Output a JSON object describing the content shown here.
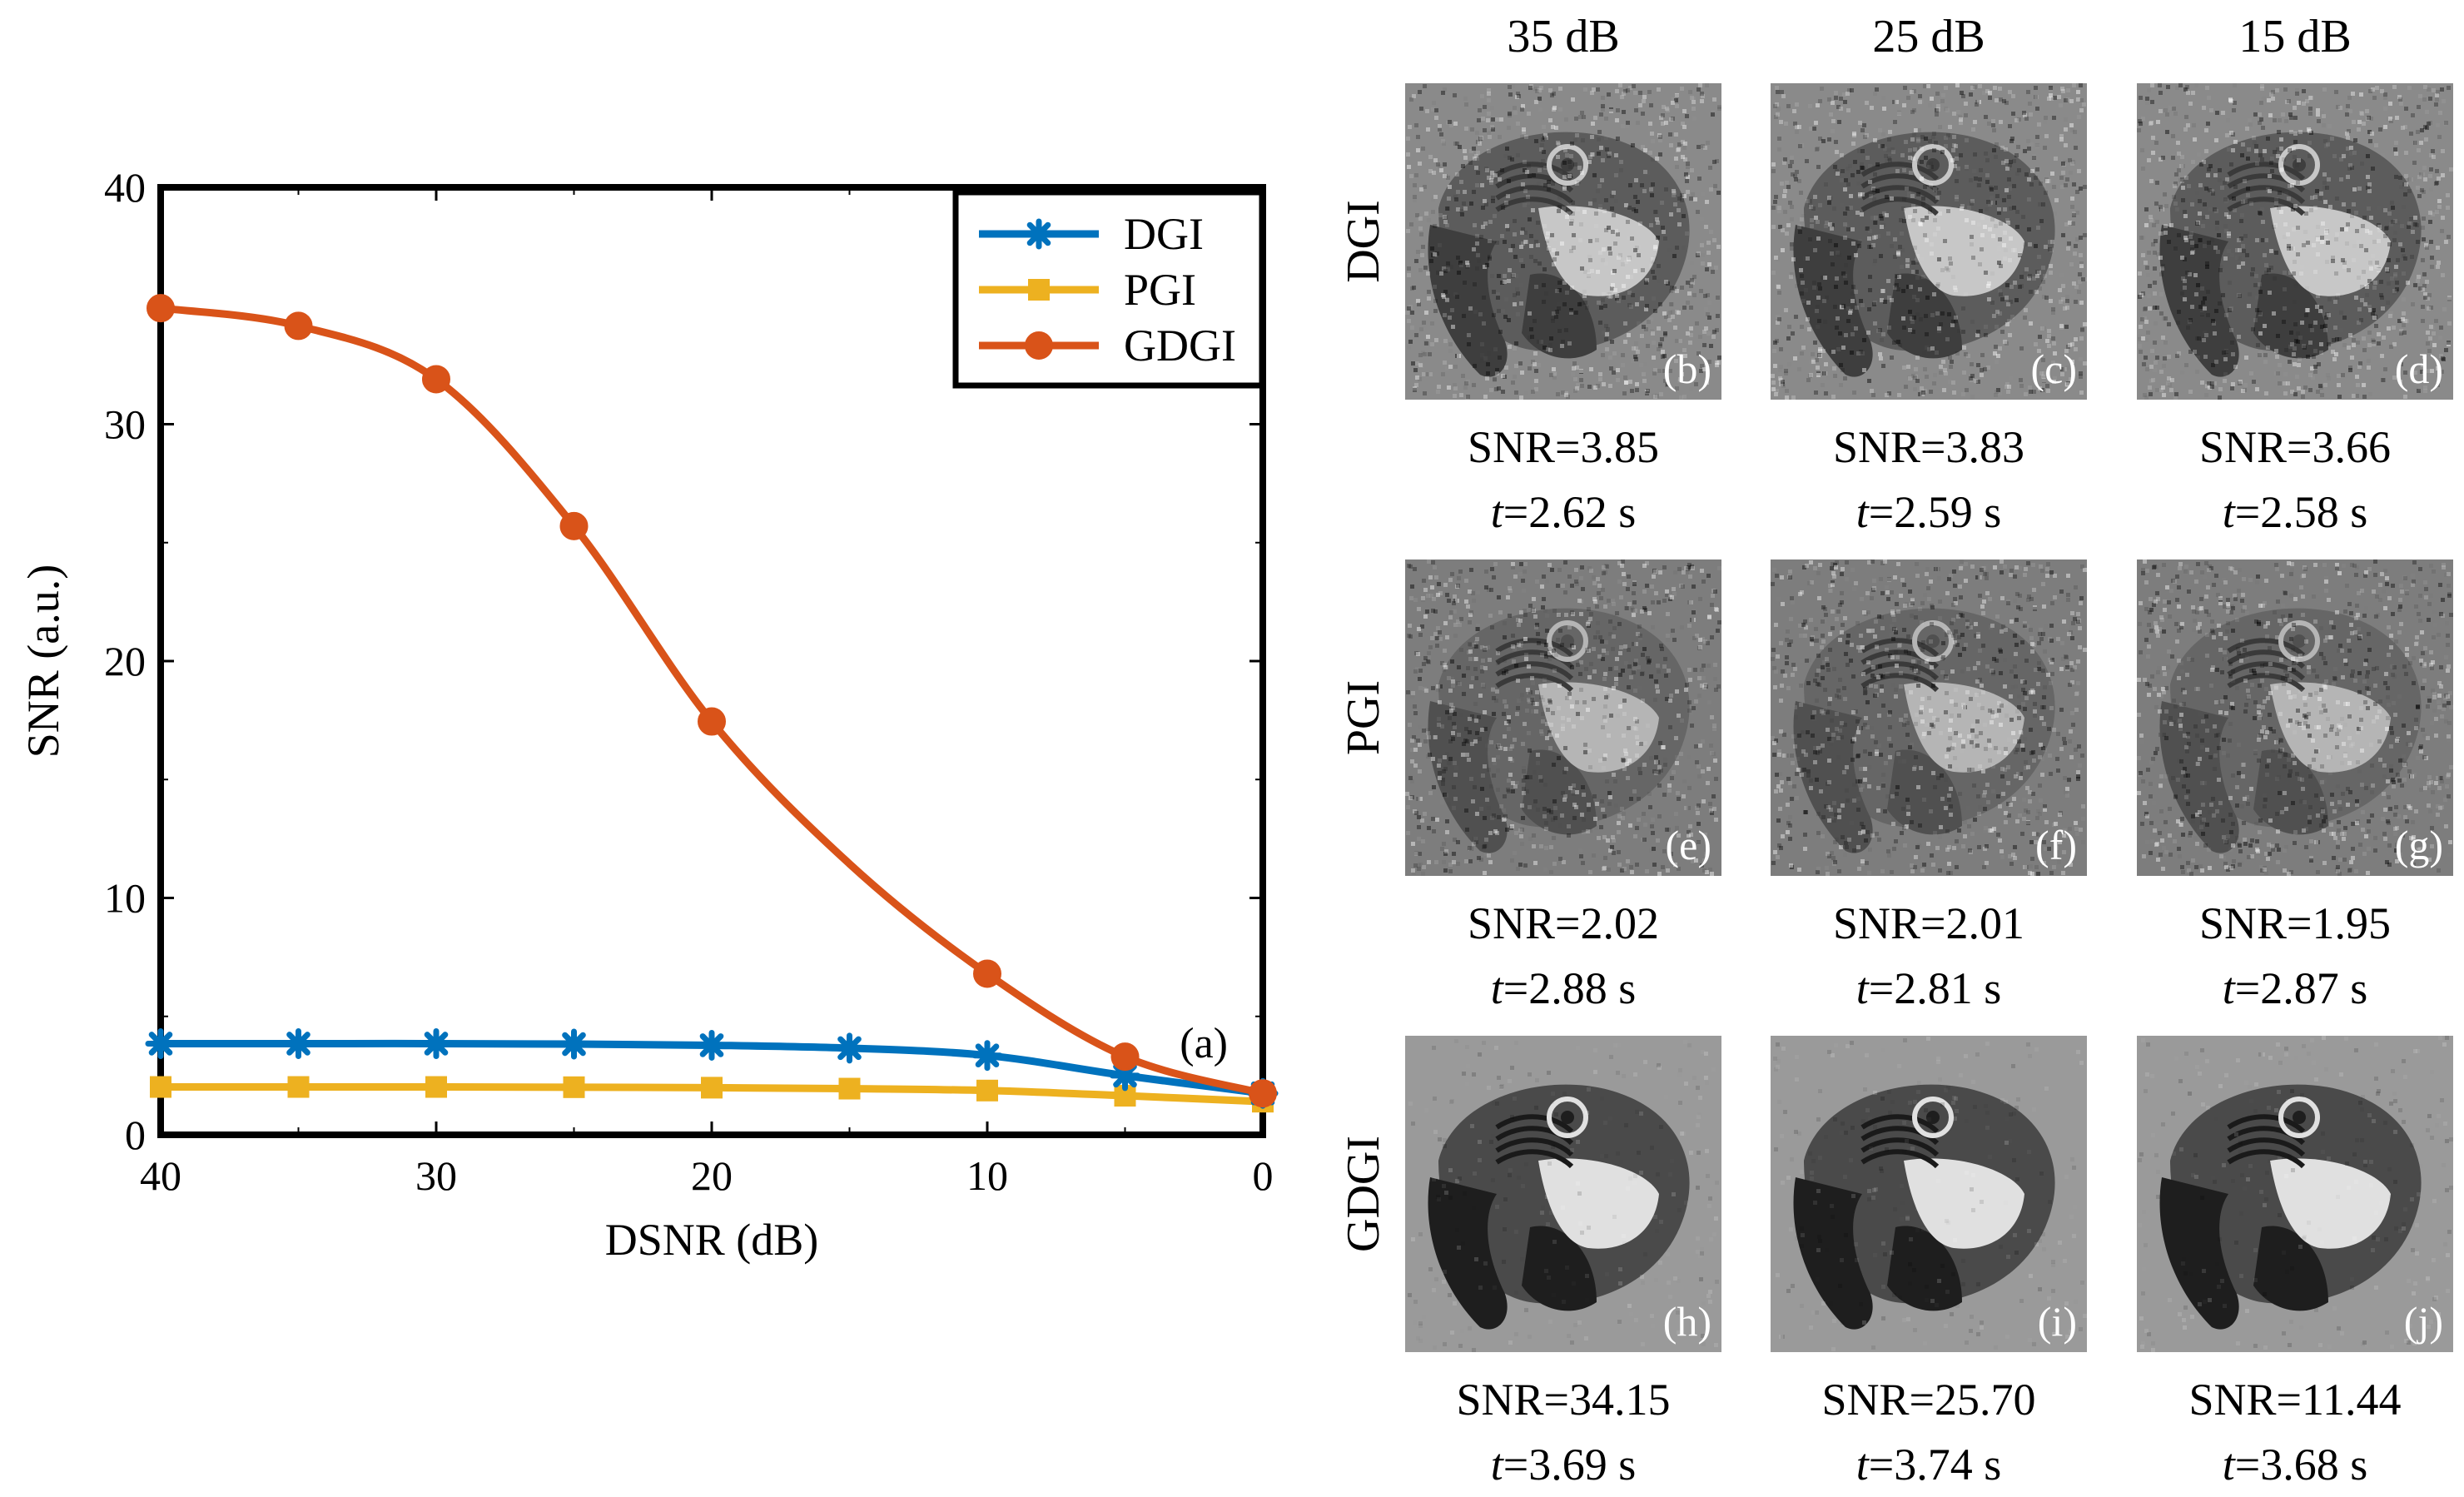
{
  "chart_data": {
    "type": "line",
    "xlabel": "DSNR (dB)",
    "ylabel": "SNR (a.u.)",
    "xlim": [
      40,
      0
    ],
    "ylim": [
      0,
      40
    ],
    "x_reversed": true,
    "x_ticks": [
      "40",
      "30",
      "20",
      "10",
      "0"
    ],
    "y_ticks": [
      "0",
      "10",
      "20",
      "30",
      "40"
    ],
    "x": [
      40,
      35,
      30,
      25,
      20,
      15,
      10,
      5,
      0
    ],
    "legend_position": "top-right",
    "panel_label": "(a)",
    "series": [
      {
        "name": "DGI",
        "color": "#0072BD",
        "marker": "asterisk",
        "values": [
          3.85,
          3.85,
          3.85,
          3.83,
          3.78,
          3.66,
          3.35,
          2.5,
          1.75
        ]
      },
      {
        "name": "PGI",
        "color": "#EDB120",
        "marker": "square",
        "values": [
          2.02,
          2.02,
          2.02,
          2.01,
          1.99,
          1.95,
          1.87,
          1.65,
          1.4
        ]
      },
      {
        "name": "GDGI",
        "color": "#D95319",
        "marker": "circle",
        "values": [
          34.9,
          34.15,
          31.9,
          25.7,
          17.45,
          11.44,
          6.8,
          3.3,
          1.75
        ]
      }
    ]
  },
  "image_grid": {
    "columns": [
      "35 dB",
      "25 dB",
      "15 dB"
    ],
    "rows": [
      {
        "label": "DGI",
        "tone": "dgi",
        "cells": [
          {
            "letter": "(b)",
            "snr": "SNR=3.85",
            "t_var": "t",
            "t_val": "=2.62 s"
          },
          {
            "letter": "(c)",
            "snr": "SNR=3.83",
            "t_var": "t",
            "t_val": "=2.59 s"
          },
          {
            "letter": "(d)",
            "snr": "SNR=3.66",
            "t_var": "t",
            "t_val": "=2.58 s"
          }
        ]
      },
      {
        "label": "PGI",
        "tone": "pgi",
        "cells": [
          {
            "letter": "(e)",
            "snr": "SNR=2.02",
            "t_var": "t",
            "t_val": "=2.88 s"
          },
          {
            "letter": "(f)",
            "snr": "SNR=2.01",
            "t_var": "t",
            "t_val": "=2.81 s"
          },
          {
            "letter": "(g)",
            "snr": "SNR=1.95",
            "t_var": "t",
            "t_val": "=2.87 s"
          }
        ]
      },
      {
        "label": "GDGI",
        "tone": "gdgi",
        "cells": [
          {
            "letter": "(h)",
            "snr": "SNR=34.15",
            "t_var": "t",
            "t_val": "=3.69 s"
          },
          {
            "letter": "(i)",
            "snr": "SNR=25.70",
            "t_var": "t",
            "t_val": "=3.74 s"
          },
          {
            "letter": "(j)",
            "snr": "SNR=11.44",
            "t_var": "t",
            "t_val": "=3.68 s"
          }
        ]
      }
    ]
  }
}
